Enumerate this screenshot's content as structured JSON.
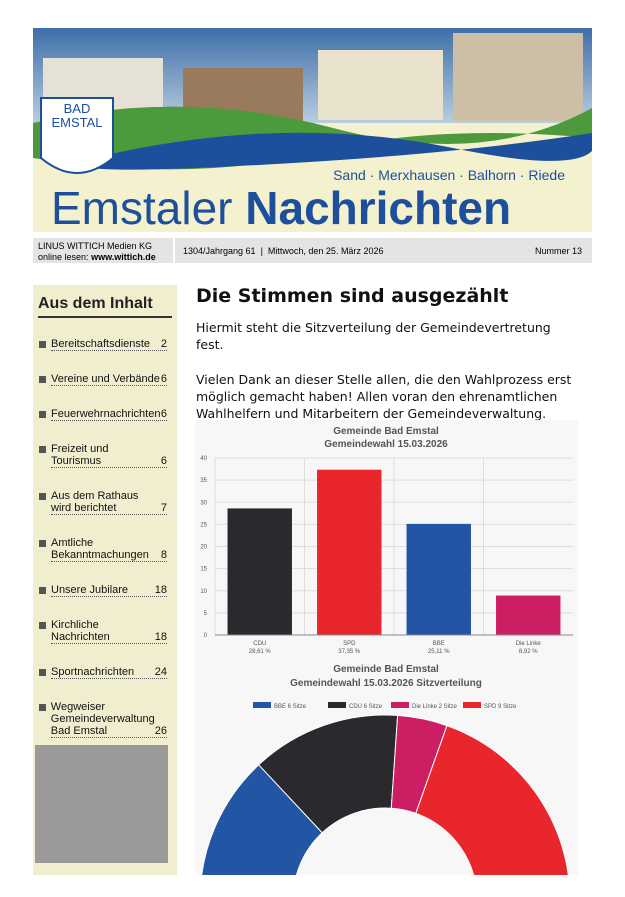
{
  "masthead": {
    "logo": [
      "BAD",
      "EMSTAL"
    ],
    "places": "Sand · Merxhausen · Balhorn · Riede",
    "title_light": "Emstaler",
    "title_bold": "Nachrichten"
  },
  "infobar": {
    "publisher": "LINUS WITTICH Medien KG",
    "online_prefix": "online lesen:",
    "online_url": "www.wittich.de",
    "issue": "1304/Jahrgang 61  |  Mittwoch, den 25. März 2026",
    "number": "Nummer 13"
  },
  "sidebar": {
    "title": "Aus dem Inhalt",
    "items": [
      {
        "label": [
          "Bereitschaftsdienste"
        ],
        "page": "2"
      },
      {
        "label": [
          "Vereine und Verbände"
        ],
        "page": "6"
      },
      {
        "label": [
          "Feuerwehrnachrichten"
        ],
        "page": "6"
      },
      {
        "label": [
          "Freizeit und Tourismus"
        ],
        "page": "6"
      },
      {
        "label": [
          "Aus dem Rathaus",
          "wird berichtet"
        ],
        "page": "7"
      },
      {
        "label": [
          "Amtliche",
          "Bekanntmachungen"
        ],
        "page": "8"
      },
      {
        "label": [
          "Unsere Jubilare"
        ],
        "page": "18"
      },
      {
        "label": [
          "Kirchliche",
          "Nachrichten"
        ],
        "page": "18"
      },
      {
        "label": [
          "Sportnachrichten"
        ],
        "page": "24"
      },
      {
        "label": [
          "Wegweiser",
          "Gemeindeverwaltung",
          "Bad Emstal"
        ],
        "page": "26"
      }
    ]
  },
  "article": {
    "title": "Die Stimmen sind ausgezählt",
    "paragraphs": [
      "Hiermit steht die Sitzverteilung der Gemeindevertretung fest.",
      "Vielen Dank an dieser Stelle allen, die den Wahlprozess erst möglich gemacht haben! Allen voran den ehrenamtlichen Wahlhelfern und Mitarbeitern der Gemeindeverwaltung."
    ]
  },
  "chart_data": [
    {
      "type": "bar",
      "title": "Gemeinde Bad Emstal",
      "subtitle": "Gemeindewahl 15.03.2026",
      "categories": [
        "CDU",
        "SPD",
        "BBE",
        "Die Linke"
      ],
      "values": [
        28.61,
        37.35,
        25.11,
        8.92
      ],
      "value_labels": [
        "28,61 %",
        "37,35 %",
        "25,11 %",
        "8,92 %"
      ],
      "colors": [
        "#2a2a2e",
        "#e8262b",
        "#2255a4",
        "#cc1f63"
      ],
      "ylim": [
        0,
        40
      ],
      "yticks": [
        0,
        5,
        10,
        15,
        20,
        25,
        30,
        35,
        40
      ],
      "grid": true
    },
    {
      "type": "half-donut",
      "title": "Gemeinde Bad Emstal",
      "subtitle": "Gemeindewahl 15.03.2026 Sitzverteilung",
      "categories": [
        "BBE 6 Sitze",
        "CDU 6 Sitze",
        "Die Linke 2 Sitze",
        "SPD 9 Sitze"
      ],
      "values": [
        6,
        6,
        2,
        9
      ],
      "colors": [
        "#2255a4",
        "#2a2a2e",
        "#cc1f63",
        "#e8262b"
      ]
    }
  ]
}
